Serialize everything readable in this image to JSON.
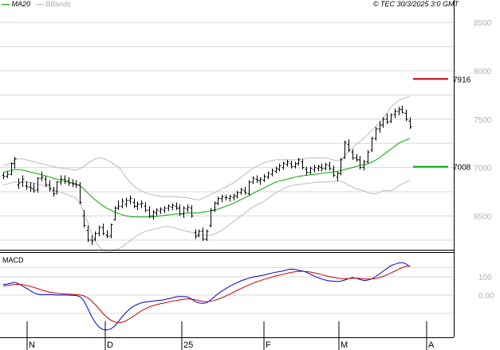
{
  "header": {
    "copyright": "© TEC 30/3/2025 3:0 GMT",
    "legend": [
      {
        "name": "MA20",
        "color": "#00aa00"
      },
      {
        "name": "BBands",
        "color": "#bbbbbb"
      }
    ]
  },
  "macd_panel": {
    "title": "MACD"
  },
  "chart_data": [
    {
      "type": "candlestick",
      "ylim": [
        6150,
        8650
      ],
      "y_ticks": [
        "8500",
        "8000",
        "7500",
        "7000",
        "6500"
      ],
      "x_labels": [
        "N",
        "D",
        "25",
        "F",
        "M",
        "A"
      ],
      "levels": [
        {
          "label": "7916",
          "value": 7916,
          "color": "#cc0000"
        },
        {
          "label": "7008",
          "value": 7008,
          "color": "#00aa00"
        }
      ],
      "ohlc": [
        [
          6920,
          6950,
          6880,
          6910
        ],
        [
          6910,
          6960,
          6890,
          6930
        ],
        [
          6930,
          7050,
          6920,
          7040
        ],
        [
          7040,
          7110,
          6990,
          7090
        ],
        [
          6820,
          6890,
          6780,
          6840
        ],
        [
          6850,
          6920,
          6800,
          6880
        ],
        [
          6810,
          6860,
          6770,
          6800
        ],
        [
          6800,
          6850,
          6750,
          6790
        ],
        [
          6780,
          6840,
          6740,
          6760
        ],
        [
          6770,
          6900,
          6740,
          6890
        ],
        [
          6890,
          6960,
          6860,
          6900
        ],
        [
          6880,
          6910,
          6800,
          6820
        ],
        [
          6820,
          6870,
          6750,
          6780
        ],
        [
          6760,
          6800,
          6700,
          6730
        ],
        [
          6750,
          6860,
          6720,
          6850
        ],
        [
          6850,
          6920,
          6820,
          6880
        ],
        [
          6880,
          6920,
          6830,
          6860
        ],
        [
          6860,
          6900,
          6810,
          6840
        ],
        [
          6840,
          6880,
          6800,
          6830
        ],
        [
          6830,
          6870,
          6790,
          6820
        ],
        [
          6820,
          6850,
          6620,
          6640
        ],
        [
          6500,
          6560,
          6380,
          6400
        ],
        [
          6350,
          6400,
          6230,
          6250
        ],
        [
          6250,
          6300,
          6200,
          6240
        ],
        [
          6260,
          6340,
          6240,
          6320
        ],
        [
          6320,
          6400,
          6290,
          6380
        ],
        [
          6380,
          6420,
          6300,
          6320
        ],
        [
          6300,
          6350,
          6270,
          6290
        ],
        [
          6290,
          6420,
          6270,
          6410
        ],
        [
          6460,
          6600,
          6450,
          6580
        ],
        [
          6580,
          6660,
          6560,
          6600
        ],
        [
          6600,
          6680,
          6580,
          6650
        ],
        [
          6620,
          6690,
          6590,
          6660
        ],
        [
          6660,
          6710,
          6620,
          6680
        ],
        [
          6640,
          6680,
          6580,
          6600
        ],
        [
          6600,
          6650,
          6560,
          6620
        ],
        [
          6620,
          6660,
          6580,
          6630
        ],
        [
          6600,
          6640,
          6540,
          6560
        ],
        [
          6560,
          6600,
          6480,
          6500
        ],
        [
          6500,
          6560,
          6460,
          6540
        ],
        [
          6530,
          6580,
          6500,
          6560
        ],
        [
          6550,
          6590,
          6520,
          6570
        ],
        [
          6560,
          6600,
          6530,
          6580
        ],
        [
          6580,
          6620,
          6550,
          6600
        ],
        [
          6590,
          6630,
          6560,
          6610
        ],
        [
          6600,
          6640,
          6560,
          6580
        ],
        [
          6580,
          6620,
          6500,
          6520
        ],
        [
          6520,
          6600,
          6480,
          6580
        ],
        [
          6570,
          6620,
          6540,
          6590
        ],
        [
          6580,
          6610,
          6480,
          6500
        ],
        [
          6330,
          6360,
          6260,
          6290
        ],
        [
          6300,
          6360,
          6280,
          6340
        ],
        [
          6340,
          6380,
          6240,
          6260
        ],
        [
          6260,
          6360,
          6240,
          6340
        ],
        [
          6400,
          6580,
          6380,
          6560
        ],
        [
          6560,
          6650,
          6540,
          6630
        ],
        [
          6630,
          6700,
          6610,
          6680
        ],
        [
          6680,
          6720,
          6640,
          6700
        ],
        [
          6690,
          6720,
          6660,
          6690
        ],
        [
          6680,
          6720,
          6650,
          6700
        ],
        [
          6690,
          6730,
          6660,
          6710
        ],
        [
          6700,
          6760,
          6680,
          6740
        ],
        [
          6740,
          6790,
          6720,
          6770
        ],
        [
          6760,
          6800,
          6720,
          6740
        ],
        [
          6730,
          6870,
          6710,
          6850
        ],
        [
          6850,
          6910,
          6830,
          6890
        ],
        [
          6880,
          6920,
          6840,
          6870
        ],
        [
          6860,
          6900,
          6820,
          6880
        ],
        [
          6870,
          6930,
          6850,
          6910
        ],
        [
          6900,
          6960,
          6880,
          6940
        ],
        [
          6930,
          6990,
          6910,
          6970
        ],
        [
          6960,
          7010,
          6940,
          6990
        ],
        [
          6980,
          7040,
          6960,
          7020
        ],
        [
          7000,
          7060,
          6980,
          7040
        ],
        [
          7030,
          7080,
          7010,
          7060
        ],
        [
          7040,
          7070,
          6990,
          7010
        ],
        [
          7010,
          7060,
          6990,
          7040
        ],
        [
          7040,
          7100,
          7020,
          7080
        ],
        [
          7060,
          7090,
          6980,
          7000
        ],
        [
          6980,
          7010,
          6920,
          6950
        ],
        [
          6950,
          7010,
          6930,
          6990
        ],
        [
          6980,
          7030,
          6950,
          7000
        ],
        [
          6990,
          7030,
          6960,
          7010
        ],
        [
          7000,
          7040,
          6960,
          6990
        ],
        [
          6990,
          7050,
          6970,
          7030
        ],
        [
          7020,
          7060,
          6970,
          6990
        ],
        [
          6980,
          7020,
          6900,
          6920
        ],
        [
          6900,
          6960,
          6860,
          6940
        ],
        [
          6940,
          7100,
          6920,
          7080
        ],
        [
          7100,
          7280,
          7090,
          7260
        ],
        [
          7240,
          7290,
          7160,
          7180
        ],
        [
          7160,
          7190,
          7080,
          7100
        ],
        [
          7100,
          7140,
          7060,
          7080
        ],
        [
          7080,
          7120,
          6980,
          7000
        ],
        [
          7000,
          7080,
          6970,
          7060
        ],
        [
          7060,
          7180,
          7040,
          7160
        ],
        [
          7180,
          7320,
          7160,
          7300
        ],
        [
          7300,
          7420,
          7280,
          7400
        ],
        [
          7400,
          7480,
          7360,
          7440
        ],
        [
          7440,
          7520,
          7410,
          7500
        ],
        [
          7500,
          7560,
          7450,
          7470
        ],
        [
          7480,
          7560,
          7460,
          7540
        ],
        [
          7550,
          7610,
          7510,
          7580
        ],
        [
          7580,
          7630,
          7540,
          7600
        ],
        [
          7600,
          7640,
          7560,
          7570
        ],
        [
          7560,
          7600,
          7480,
          7500
        ],
        [
          7480,
          7520,
          7400,
          7420
        ]
      ],
      "ma20": [
        6950,
        6960,
        6970,
        6980,
        6980,
        6975,
        6965,
        6955,
        6945,
        6935,
        6925,
        6915,
        6905,
        6890,
        6880,
        6870,
        6860,
        6850,
        6840,
        6830,
        6810,
        6780,
        6740,
        6700,
        6665,
        6635,
        6605,
        6580,
        6560,
        6540,
        6525,
        6510,
        6500,
        6495,
        6490,
        6490,
        6490,
        6490,
        6490,
        6490,
        6495,
        6500,
        6505,
        6510,
        6515,
        6520,
        6520,
        6525,
        6530,
        6530,
        6530,
        6530,
        6540,
        6545,
        6550,
        6560,
        6570,
        6585,
        6600,
        6615,
        6630,
        6650,
        6670,
        6690,
        6710,
        6730,
        6750,
        6770,
        6790,
        6810,
        6830,
        6850,
        6860,
        6870,
        6880,
        6890,
        6900,
        6910,
        6915,
        6920,
        6925,
        6930,
        6935,
        6940,
        6945,
        6950,
        6955,
        6960,
        6970,
        6980,
        6990,
        7000,
        7010,
        7020,
        7030,
        7040,
        7055,
        7075,
        7100,
        7130,
        7160,
        7190,
        7220,
        7250,
        7270,
        7285,
        7300
      ],
      "bb_upper": [
        7020,
        7030,
        7050,
        7080,
        7090,
        7090,
        7080,
        7070,
        7060,
        7050,
        7040,
        7030,
        7020,
        7010,
        7000,
        6995,
        6990,
        6985,
        6980,
        6975,
        6990,
        7010,
        7040,
        7070,
        7090,
        7100,
        7095,
        7080,
        7060,
        7030,
        7010,
        6960,
        6900,
        6850,
        6810,
        6780,
        6760,
        6740,
        6730,
        6720,
        6710,
        6700,
        6700,
        6700,
        6700,
        6700,
        6695,
        6690,
        6690,
        6680,
        6670,
        6665,
        6680,
        6700,
        6720,
        6740,
        6760,
        6780,
        6800,
        6820,
        6840,
        6870,
        6900,
        6930,
        6960,
        6990,
        7010,
        7030,
        7050,
        7060,
        7070,
        7080,
        7080,
        7080,
        7080,
        7080,
        7080,
        7085,
        7090,
        7095,
        7100,
        7100,
        7100,
        7100,
        7100,
        7090,
        7080,
        7070,
        7080,
        7120,
        7160,
        7200,
        7240,
        7270,
        7300,
        7340,
        7380,
        7420,
        7460,
        7500,
        7560,
        7620,
        7660,
        7690,
        7710,
        7725,
        7735
      ],
      "bb_lower": [
        6820,
        6830,
        6840,
        6850,
        6850,
        6850,
        6850,
        6845,
        6840,
        6830,
        6820,
        6810,
        6800,
        6780,
        6760,
        6745,
        6730,
        6715,
        6700,
        6685,
        6630,
        6550,
        6440,
        6330,
        6240,
        6180,
        6145,
        6130,
        6130,
        6140,
        6160,
        6180,
        6210,
        6240,
        6270,
        6300,
        6320,
        6340,
        6350,
        6360,
        6370,
        6380,
        6390,
        6390,
        6380,
        6370,
        6360,
        6350,
        6340,
        6330,
        6320,
        6310,
        6300,
        6300,
        6300,
        6310,
        6330,
        6350,
        6380,
        6410,
        6440,
        6470,
        6500,
        6530,
        6560,
        6590,
        6610,
        6630,
        6650,
        6680,
        6710,
        6740,
        6760,
        6780,
        6800,
        6810,
        6820,
        6825,
        6830,
        6835,
        6840,
        6845,
        6850,
        6850,
        6850,
        6850,
        6855,
        6860,
        6860,
        6840,
        6820,
        6800,
        6780,
        6770,
        6760,
        6740,
        6730,
        6730,
        6740,
        6760,
        6760,
        6760,
        6780,
        6810,
        6830,
        6850,
        6870
      ]
    },
    {
      "type": "line",
      "title": "MACD",
      "ylim": [
        -230,
        230
      ],
      "y_ticks": [
        "100",
        "0.00"
      ],
      "series": [
        {
          "color": "#0000cc",
          "values": [
            58,
            60,
            65,
            70,
            62,
            50,
            38,
            25,
            12,
            5,
            2,
            3,
            4,
            2,
            0,
            0,
            1,
            0,
            -1,
            -2,
            -8,
            -30,
            -70,
            -115,
            -150,
            -175,
            -188,
            -190,
            -185,
            -170,
            -145,
            -118,
            -95,
            -75,
            -60,
            -50,
            -42,
            -38,
            -35,
            -33,
            -30,
            -28,
            -25,
            -20,
            -15,
            -10,
            -8,
            -8,
            -10,
            -20,
            -35,
            -42,
            -45,
            -42,
            -28,
            -10,
            8,
            22,
            35,
            48,
            58,
            68,
            78,
            85,
            92,
            98,
            102,
            106,
            110,
            115,
            120,
            125,
            128,
            132,
            138,
            142,
            140,
            136,
            132,
            125,
            115,
            105,
            96,
            88,
            82,
            78,
            76,
            74,
            76,
            82,
            90,
            96,
            92,
            85,
            80,
            82,
            88,
            100,
            115,
            130,
            145,
            160,
            168,
            175,
            178,
            170,
            155
          ]
        },
        {
          "color": "#cc0000",
          "values": [
            50,
            52,
            55,
            58,
            59,
            57,
            53,
            48,
            42,
            35,
            28,
            22,
            17,
            13,
            10,
            8,
            6,
            5,
            4,
            3,
            1,
            -4,
            -14,
            -30,
            -52,
            -76,
            -100,
            -120,
            -136,
            -146,
            -150,
            -148,
            -140,
            -128,
            -115,
            -100,
            -86,
            -75,
            -65,
            -58,
            -52,
            -47,
            -43,
            -38,
            -34,
            -30,
            -26,
            -23,
            -21,
            -22,
            -25,
            -30,
            -34,
            -36,
            -34,
            -29,
            -22,
            -14,
            -5,
            5,
            15,
            26,
            36,
            46,
            55,
            64,
            72,
            79,
            86,
            92,
            98,
            104,
            109,
            114,
            119,
            124,
            127,
            129,
            130,
            129,
            126,
            122,
            117,
            112,
            106,
            101,
            97,
            93,
            90,
            89,
            90,
            92,
            92,
            91,
            89,
            88,
            88,
            90,
            95,
            102,
            110,
            120,
            130,
            140,
            150,
            157,
            160
          ]
        }
      ]
    }
  ]
}
